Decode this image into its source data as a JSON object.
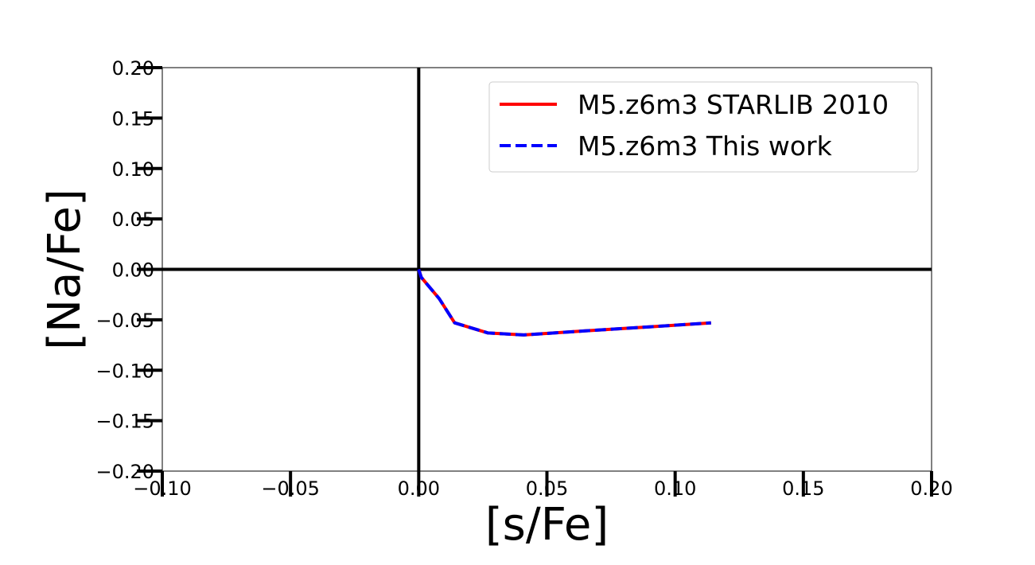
{
  "chart_data": {
    "type": "line",
    "title": "",
    "xlabel": "[s/Fe]",
    "ylabel": "[Na/Fe]",
    "xlim": [
      -0.1,
      0.2
    ],
    "ylim": [
      -0.2,
      0.2
    ],
    "x_ticks": [
      -0.1,
      -0.05,
      0.0,
      0.05,
      0.1,
      0.15,
      0.2
    ],
    "y_ticks": [
      -0.2,
      -0.15,
      -0.1,
      -0.05,
      0.0,
      0.05,
      0.1,
      0.15,
      0.2
    ],
    "x_tick_labels": [
      "−0.10",
      "−0.05",
      "0.00",
      "0.05",
      "0.10",
      "0.15",
      "0.20"
    ],
    "y_tick_labels": [
      "−0.20",
      "−0.15",
      "−0.10",
      "−0.05",
      "0.00",
      "0.05",
      "0.10",
      "0.15",
      "0.20"
    ],
    "zero_lines": true,
    "grid": false,
    "legend_position": "top-right",
    "series": [
      {
        "name": "M5.z6m3 STARLIB 2010",
        "color": "#ff0000",
        "style": "solid",
        "x": [
          0.0,
          0.001,
          0.003,
          0.008,
          0.014,
          0.027,
          0.041,
          0.065,
          0.09,
          0.114
        ],
        "y": [
          0.0,
          -0.008,
          -0.014,
          -0.029,
          -0.053,
          -0.063,
          -0.065,
          -0.061,
          -0.057,
          -0.053
        ]
      },
      {
        "name": "M5.z6m3 This work",
        "color": "#0000ff",
        "style": "dashed",
        "x": [
          0.0,
          0.001,
          0.003,
          0.008,
          0.014,
          0.027,
          0.041,
          0.065,
          0.09,
          0.114
        ],
        "y": [
          0.0,
          -0.008,
          -0.014,
          -0.029,
          -0.053,
          -0.063,
          -0.065,
          -0.061,
          -0.057,
          -0.053
        ]
      }
    ]
  }
}
